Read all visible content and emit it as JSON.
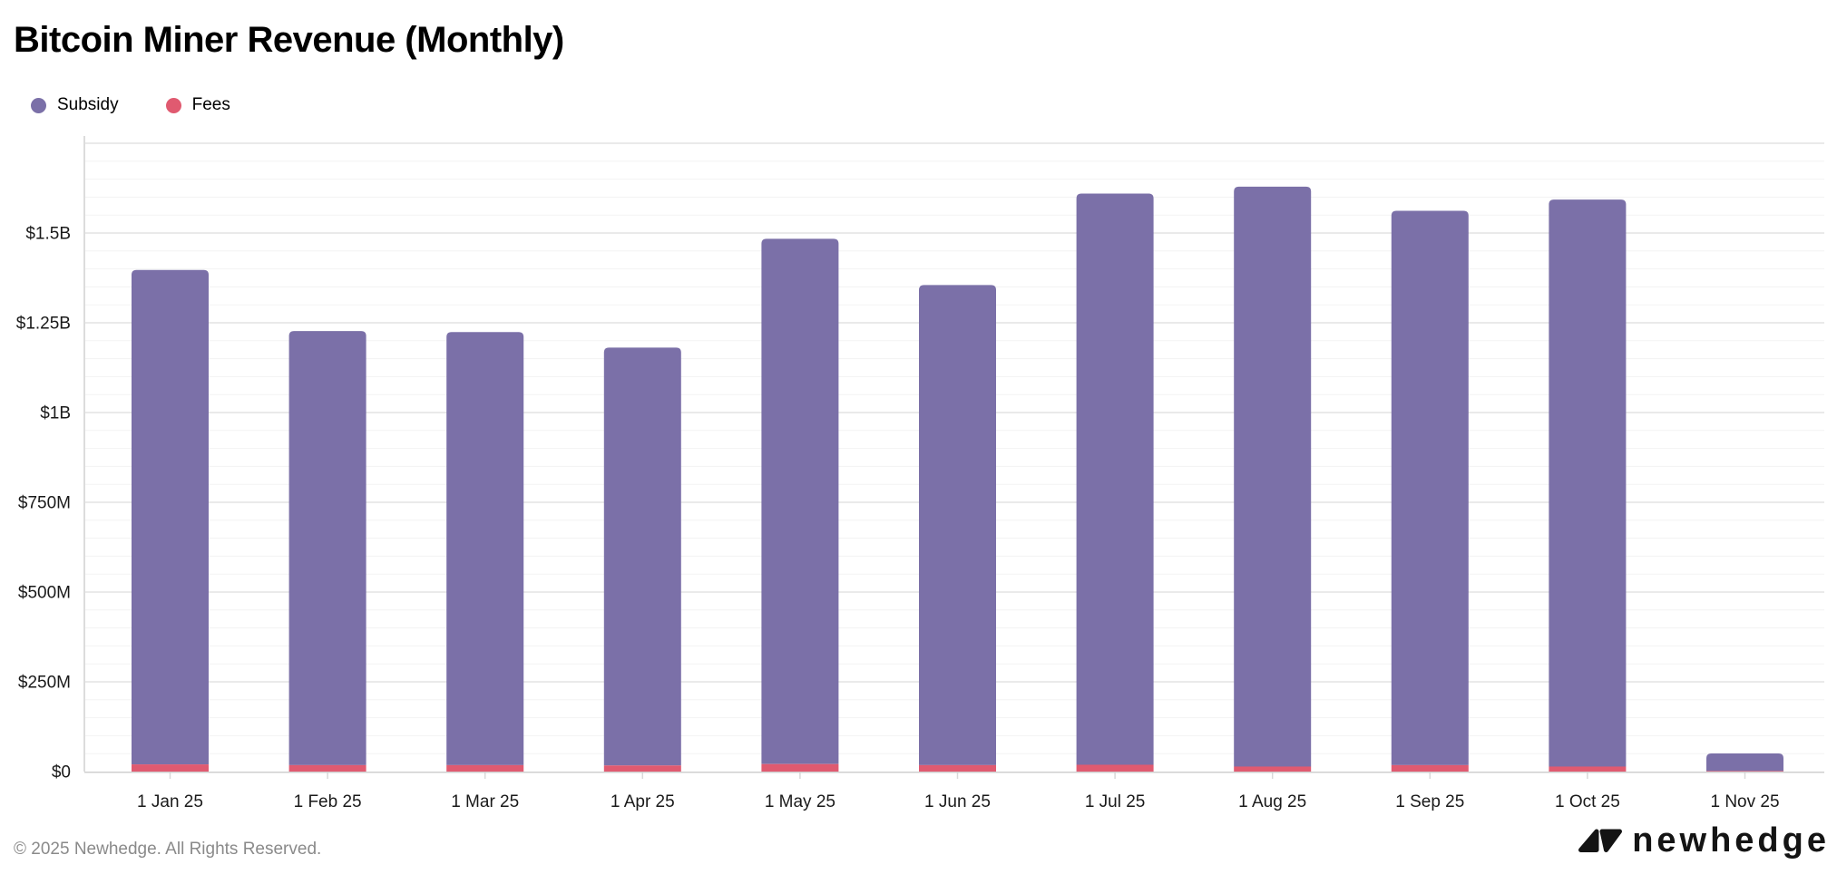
{
  "header": {
    "title": "Bitcoin Miner Revenue (Monthly)"
  },
  "legend": [
    {
      "label": "Subsidy",
      "color": "#7B70A8"
    },
    {
      "label": "Fees",
      "color": "#E05A70"
    }
  ],
  "chart_data": {
    "type": "bar",
    "stacked": true,
    "title": "Bitcoin Miner Revenue (Monthly)",
    "xlabel": "",
    "ylabel": "",
    "values_unit": "USD millions",
    "categories": [
      "1 Jan 25",
      "1 Feb 25",
      "1 Mar 25",
      "1 Apr 25",
      "1 May 25",
      "1 Jun 25",
      "1 Jul 25",
      "1 Aug 25",
      "1 Sep 25",
      "1 Oct 25",
      "1 Nov 25"
    ],
    "series": [
      {
        "name": "Fees",
        "color": "#E05A70",
        "values": [
          20,
          18,
          18,
          17,
          21,
          18,
          19,
          14,
          18,
          14,
          1.5
        ]
      },
      {
        "name": "Subsidy",
        "color": "#7B70A8",
        "values": [
          1377,
          1209,
          1206,
          1164,
          1463,
          1337,
          1591,
          1615,
          1544,
          1579,
          49
        ]
      }
    ],
    "stack_order_bottom_to_top": [
      "Fees",
      "Subsidy"
    ],
    "y_axis": {
      "min": 0,
      "max": 1750,
      "major_interval": 250,
      "minor_interval": 50,
      "ticks": [
        {
          "value": 0,
          "label": "$0"
        },
        {
          "value": 250,
          "label": "$250M"
        },
        {
          "value": 500,
          "label": "$500M"
        },
        {
          "value": 750,
          "label": "$750M"
        },
        {
          "value": 1000,
          "label": "$1B"
        },
        {
          "value": 1250,
          "label": "$1.25B"
        },
        {
          "value": 1500,
          "label": "$1.5B"
        }
      ]
    },
    "grid": "horizontal, major and minor, on",
    "legend_position": "top-left"
  },
  "footer": {
    "copyright": "© 2025 Newhedge. All Rights Reserved.",
    "brand": "newhedge"
  }
}
